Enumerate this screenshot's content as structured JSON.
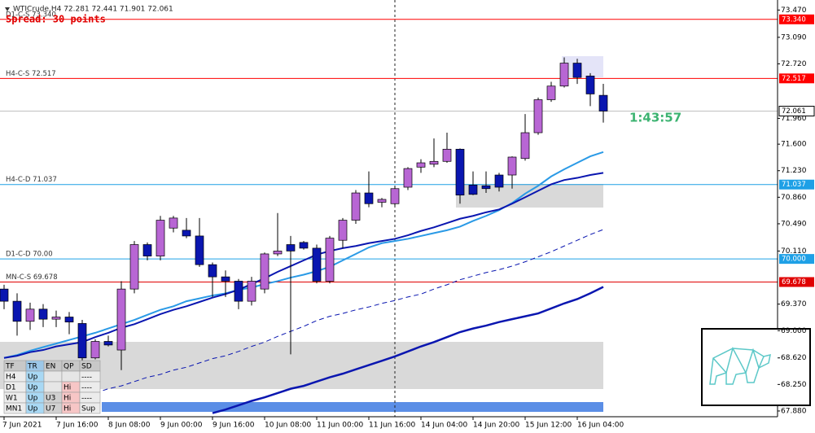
{
  "chart_data": {
    "type": "candlestick",
    "title": "WTICrude,H4  72.281 72.441 71.901 72.061",
    "spread_text": "Spread: 30 points",
    "timer": "1:43:57",
    "categories": [
      "7 Jun 2021",
      null,
      null,
      null,
      "7 Jun 16:00",
      null,
      null,
      null,
      "8 Jun 08:00",
      null,
      null,
      null,
      "9 Jun 00:00",
      null,
      null,
      null,
      "9 Jun 16:00",
      null,
      null,
      null,
      "10 Jun 08:00",
      null,
      null,
      null,
      "11 Jun 00:00",
      null,
      null,
      null,
      "11 Jun 16:00",
      null,
      null,
      null,
      "14 Jun 04:00",
      null,
      null,
      null,
      "14 Jun 20:00",
      null,
      null,
      null,
      "15 Jun 12:00",
      null,
      null,
      null,
      "16 Jun 04:00",
      null,
      null
    ],
    "ohlc": {
      "up_color": "#b866d4",
      "down_color": "#0a16b0",
      "open": [
        69.58,
        69.41,
        69.13,
        69.3,
        69.16,
        69.19,
        69.1,
        68.62,
        68.85,
        68.73,
        69.58,
        70.2,
        70.04,
        70.43,
        70.4,
        70.32,
        69.92,
        69.75,
        69.69,
        69.41,
        69.58,
        70.07,
        70.2,
        70.23,
        70.15,
        69.69,
        70.26,
        70.54,
        70.92,
        70.79,
        70.77,
        71.0,
        71.28,
        71.32,
        71.36,
        71.53,
        71.03,
        71.02,
        71.17,
        71.17,
        71.4,
        71.76,
        72.22,
        72.41,
        72.73,
        72.55,
        72.281
      ],
      "high": [
        69.64,
        69.52,
        69.39,
        69.37,
        69.28,
        69.26,
        69.15,
        68.88,
        68.93,
        69.69,
        70.25,
        70.23,
        70.6,
        70.6,
        70.57,
        70.57,
        69.95,
        69.84,
        69.72,
        69.75,
        70.09,
        70.64,
        70.32,
        70.25,
        70.2,
        70.32,
        70.57,
        70.96,
        71.22,
        70.85,
        71.02,
        71.28,
        71.39,
        71.68,
        71.76,
        71.54,
        71.22,
        71.22,
        71.2,
        71.43,
        72.02,
        72.25,
        72.47,
        72.81,
        72.79,
        72.59,
        72.441
      ],
      "low": [
        69.3,
        68.93,
        69.01,
        69.05,
        69.05,
        68.95,
        68.58,
        68.6,
        68.78,
        68.45,
        69.52,
        69.98,
        69.98,
        70.37,
        70.29,
        69.89,
        69.47,
        69.47,
        69.3,
        69.35,
        69.52,
        70.04,
        68.67,
        70.13,
        69.66,
        69.66,
        70.15,
        70.49,
        70.72,
        70.72,
        70.74,
        70.96,
        71.2,
        71.28,
        71.34,
        70.77,
        70.89,
        70.92,
        70.94,
        70.98,
        71.37,
        71.73,
        72.19,
        72.39,
        72.44,
        72.13,
        71.901
      ],
      "close": [
        69.41,
        69.13,
        69.3,
        69.16,
        69.19,
        69.12,
        68.62,
        68.85,
        68.8,
        69.58,
        70.2,
        70.04,
        70.54,
        70.57,
        70.32,
        69.92,
        69.75,
        69.69,
        69.41,
        69.69,
        70.07,
        70.11,
        70.11,
        70.15,
        69.69,
        70.29,
        70.54,
        70.92,
        70.77,
        70.83,
        70.98,
        71.26,
        71.34,
        71.36,
        71.53,
        70.89,
        70.9,
        70.98,
        71.0,
        71.42,
        71.76,
        72.22,
        72.41,
        72.73,
        72.53,
        72.3,
        72.061
      ]
    },
    "series": [
      {
        "color": "#2a9ae6",
        "width": 2,
        "dash": false,
        "values": [
          68.62,
          68.66,
          68.72,
          68.77,
          68.82,
          68.87,
          68.92,
          68.97,
          69.03,
          69.09,
          69.15,
          69.22,
          69.29,
          69.34,
          69.41,
          69.45,
          69.49,
          69.52,
          69.57,
          69.6,
          69.65,
          69.69,
          69.74,
          69.78,
          69.83,
          69.89,
          69.98,
          70.07,
          70.16,
          70.22,
          70.25,
          70.28,
          70.32,
          70.36,
          70.4,
          70.45,
          70.53,
          70.6,
          70.68,
          70.78,
          70.91,
          71.02,
          71.15,
          71.25,
          71.34,
          71.43,
          71.49
        ]
      },
      {
        "color": "#0a16b0",
        "width": 2,
        "dash": false,
        "values": [
          68.62,
          68.65,
          68.7,
          68.73,
          68.78,
          68.81,
          68.84,
          68.91,
          68.97,
          69.04,
          69.09,
          69.16,
          69.23,
          69.29,
          69.34,
          69.4,
          69.46,
          69.51,
          69.57,
          69.65,
          69.73,
          69.82,
          69.9,
          69.98,
          70.06,
          70.11,
          70.15,
          70.18,
          70.22,
          70.25,
          70.28,
          70.33,
          70.39,
          70.44,
          70.5,
          70.56,
          70.6,
          70.65,
          70.69,
          70.77,
          70.86,
          70.95,
          71.04,
          71.1,
          71.13,
          71.17,
          71.2
        ]
      },
      {
        "color": "#0a16b0",
        "width": 1,
        "dash": true,
        "values": [
          null,
          null,
          null,
          null,
          null,
          null,
          null,
          68.13,
          68.19,
          68.23,
          68.29,
          68.35,
          68.39,
          68.45,
          68.49,
          68.55,
          68.61,
          68.65,
          68.71,
          68.78,
          68.84,
          68.92,
          68.99,
          69.06,
          69.14,
          69.2,
          69.24,
          69.29,
          69.33,
          69.38,
          69.42,
          69.47,
          69.51,
          69.58,
          69.64,
          69.71,
          69.76,
          69.81,
          69.85,
          69.9,
          69.96,
          70.03,
          70.1,
          70.18,
          70.26,
          70.34,
          70.41
        ]
      },
      {
        "color": "#0a16b0",
        "width": 2.5,
        "dash": false,
        "values": [
          null,
          null,
          null,
          null,
          null,
          null,
          null,
          null,
          null,
          null,
          null,
          null,
          null,
          null,
          null,
          null,
          67.85,
          67.9,
          67.96,
          68.02,
          68.07,
          68.13,
          68.19,
          68.23,
          68.29,
          68.35,
          68.4,
          68.46,
          68.52,
          68.58,
          68.64,
          68.71,
          68.78,
          68.84,
          68.91,
          68.98,
          69.03,
          69.07,
          69.12,
          69.16,
          69.2,
          69.24,
          69.31,
          69.38,
          69.44,
          69.52,
          69.61
        ]
      }
    ],
    "levels": [
      {
        "name": "D1-C-S 73.340",
        "value": 73.34,
        "value_label": "73.340",
        "color": "#ff0000"
      },
      {
        "name": "H4-C-S 72.517",
        "value": 72.517,
        "value_label": "72.517",
        "color": "#ff0000"
      },
      {
        "name": "H4-C-D 71.037",
        "value": 71.037,
        "value_label": "71.037",
        "color": "#1ea0e6"
      },
      {
        "name": "D1-C-D 70.00",
        "value": 70.0,
        "value_label": "70.000",
        "color": "#1ea0e6"
      },
      {
        "name": "MN-C-S 69.678",
        "value": 69.678,
        "value_label": "69.678",
        "color": "#e00000"
      }
    ],
    "last_price": 72.061,
    "ylim": [
      67.8,
      73.61
    ],
    "yticks": [
      {
        "value": 73.47,
        "label": "73.470"
      },
      {
        "value": 73.09,
        "label": "73.090"
      },
      {
        "value": 72.72,
        "label": "72.720"
      },
      {
        "value": 71.96,
        "label": "71.960"
      },
      {
        "value": 71.6,
        "label": "71.600"
      },
      {
        "value": 71.23,
        "label": "71.230"
      },
      {
        "value": 70.86,
        "label": "70.860"
      },
      {
        "value": 70.49,
        "label": "70.490"
      },
      {
        "value": 70.11,
        "label": "70.110"
      },
      {
        "value": 69.37,
        "label": "69.370"
      },
      {
        "value": 69.0,
        "label": "69.000"
      },
      {
        "value": 68.62,
        "label": "68.620"
      },
      {
        "value": 68.25,
        "label": "68.250"
      },
      {
        "value": 67.88,
        "label": "67.880"
      }
    ],
    "grid": false,
    "table": {
      "header": [
        "TF",
        "TR",
        "EN",
        "QP",
        "SD"
      ],
      "rows": [
        [
          "H4",
          "Up",
          null,
          null,
          "----"
        ],
        [
          "D1",
          "Up",
          null,
          "Hi",
          "----"
        ],
        [
          "W1",
          "Up",
          "U3",
          "Hi",
          "----"
        ],
        [
          "MN1",
          "Up",
          "U7",
          "Hi",
          "Sup"
        ]
      ]
    }
  }
}
